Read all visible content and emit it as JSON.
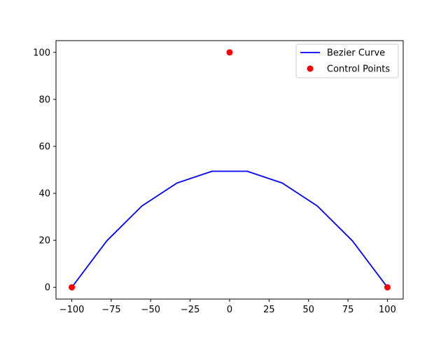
{
  "chart_data": {
    "type": "line",
    "title": "",
    "xlabel": "",
    "ylabel": "",
    "xlim": [
      -110,
      110
    ],
    "ylim": [
      -5,
      105
    ],
    "xticks": [
      -100,
      -75,
      -50,
      -25,
      0,
      25,
      50,
      75,
      100
    ],
    "xtick_labels": [
      "−100",
      "−75",
      "−50",
      "−25",
      "0",
      "25",
      "50",
      "75",
      "100"
    ],
    "yticks": [
      0,
      20,
      40,
      60,
      80,
      100
    ],
    "ytick_labels": [
      "0",
      "20",
      "40",
      "60",
      "80",
      "100"
    ],
    "grid": false,
    "legend_position": "top-right",
    "series": [
      {
        "name": "Bezier Curve",
        "kind": "line",
        "color": "#0000ff",
        "x": [
          -100,
          -77.8,
          -55.6,
          -33.3,
          -11.1,
          11.1,
          33.3,
          55.6,
          77.8,
          100
        ],
        "y": [
          0,
          19.8,
          34.6,
          44.4,
          49.4,
          49.4,
          44.4,
          34.6,
          19.8,
          0
        ]
      },
      {
        "name": "Control Points",
        "kind": "scatter",
        "color": "#ff0000",
        "x": [
          -100,
          0,
          100
        ],
        "y": [
          0,
          100,
          0
        ]
      }
    ]
  }
}
